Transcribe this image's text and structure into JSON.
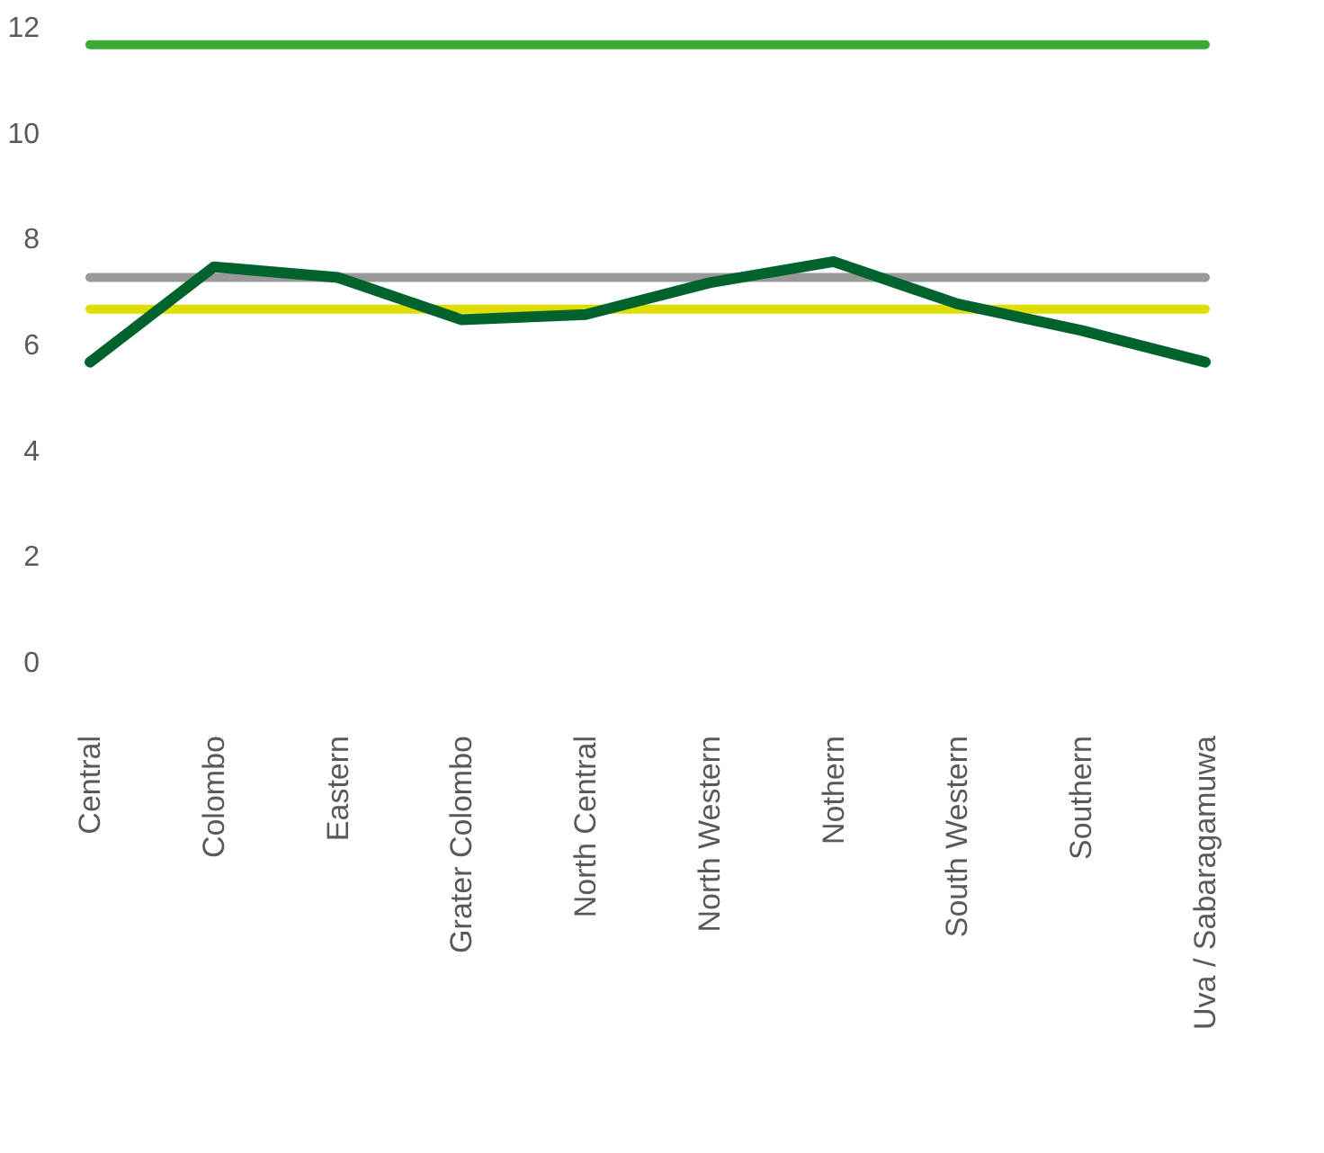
{
  "chart_data": {
    "type": "line",
    "categories": [
      "Central",
      "Colombo",
      "Eastern",
      "Grater Colombo",
      "North Central",
      "North Western",
      "Nothern",
      "South Western",
      "Southern",
      "Uva / Sabaragamuwa"
    ],
    "series": [
      {
        "color": "#3aaa35",
        "values": [
          11.7,
          11.7,
          11.7,
          11.7,
          11.7,
          11.7,
          11.7,
          11.7,
          11.7,
          11.7
        ]
      },
      {
        "color": "#999999",
        "values": [
          7.3,
          7.3,
          7.3,
          7.3,
          7.3,
          7.3,
          7.3,
          7.3,
          7.3,
          7.3
        ]
      },
      {
        "color": "#dede00",
        "values": [
          6.7,
          6.7,
          6.7,
          6.7,
          6.7,
          6.7,
          6.7,
          6.7,
          6.7,
          6.7
        ]
      },
      {
        "color": "#00632e",
        "values": [
          5.7,
          7.5,
          7.3,
          6.5,
          6.6,
          7.2,
          7.6,
          6.8,
          6.3,
          5.7
        ]
      }
    ],
    "ylim": [
      0,
      12
    ],
    "yticks": [
      0,
      2,
      4,
      6,
      8,
      10,
      12
    ],
    "grid": false,
    "marker": "none",
    "line_style": "solid"
  }
}
